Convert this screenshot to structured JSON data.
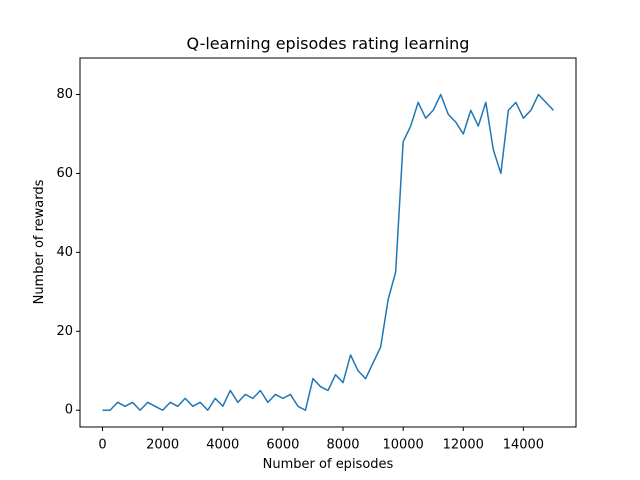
{
  "chart_data": {
    "type": "line",
    "title": "Q-learning episodes rating learning",
    "x_label": "Number of episodes",
    "y_label": "Number of rewards",
    "xlim": [
      -750,
      15750
    ],
    "ylim": [
      -4.25,
      89.25
    ],
    "xticks": [
      0,
      2000,
      4000,
      6000,
      8000,
      10000,
      12000,
      14000
    ],
    "yticks": [
      0,
      20,
      40,
      60,
      80
    ],
    "grid": false,
    "x": [
      0,
      250,
      500,
      750,
      1000,
      1250,
      1500,
      1750,
      2000,
      2250,
      2500,
      2750,
      3000,
      3250,
      3500,
      3750,
      4000,
      4250,
      4500,
      4750,
      5000,
      5250,
      5500,
      5750,
      6000,
      6250,
      6500,
      6750,
      7000,
      7250,
      7500,
      7750,
      8000,
      8250,
      8500,
      8750,
      9000,
      9250,
      9500,
      9750,
      10000,
      10250,
      10500,
      10750,
      11000,
      11250,
      11500,
      11750,
      12000,
      12250,
      12500,
      12750,
      13000,
      13250,
      13500,
      13750,
      14000,
      14250,
      14500,
      14750,
      14999
    ],
    "series": [
      {
        "name": "rewards",
        "color": "#1f77b4",
        "values": [
          0,
          0,
          2,
          1,
          2,
          0,
          2,
          1,
          0,
          2,
          1,
          3,
          1,
          2,
          0,
          3,
          1,
          5,
          2,
          4,
          3,
          5,
          2,
          4,
          3,
          4,
          1,
          0,
          8,
          6,
          5,
          9,
          7,
          14,
          10,
          8,
          12,
          16,
          28,
          35,
          68,
          72,
          78,
          74,
          76,
          80,
          75,
          73,
          70,
          76,
          72,
          78,
          66,
          60,
          76,
          78,
          74,
          76,
          80,
          78,
          76
        ]
      }
    ]
  }
}
